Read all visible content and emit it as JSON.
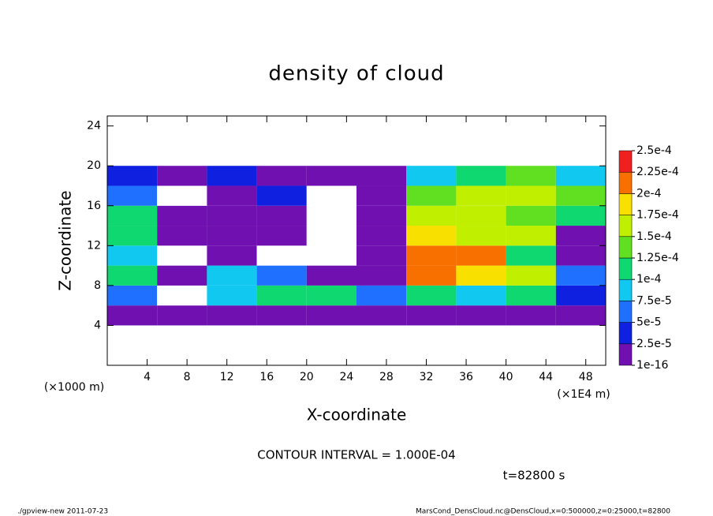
{
  "chart_data": {
    "type": "contourf",
    "title": "density of cloud",
    "xlabel": "X-coordinate",
    "ylabel": "Z-coordinate",
    "xunit": "(×1E4 m)",
    "yunit": "(×1000 m)",
    "annotation": "CONTOUR INTERVAL = 1.000E-04",
    "time_label": "t=82800 s",
    "footer_left": "./gpview-new   2011-07-23",
    "footer_right": "MarsCond_DensCloud.nc@DensCloud,x=0:500000,z=0:25000,t=82800",
    "xlim": [
      0,
      50
    ],
    "ylim": [
      0,
      25
    ],
    "xticks": [
      4,
      8,
      12,
      16,
      20,
      24,
      28,
      32,
      36,
      40,
      44,
      48
    ],
    "yticks": [
      4,
      8,
      12,
      16,
      20,
      24
    ],
    "x_edges": [
      0,
      5,
      10,
      15,
      20,
      25,
      30,
      35,
      40,
      45,
      50
    ],
    "z_edges": [
      4,
      6,
      8,
      10,
      12,
      14,
      16,
      18,
      20
    ],
    "values": [
      [
        1e-05,
        1e-05,
        1e-05,
        1e-05,
        1e-05,
        1e-05,
        1e-05,
        1e-05,
        1e-05,
        1e-05
      ],
      [
        5e-05,
        0,
        8e-05,
        0.0001,
        0.00011,
        5e-05,
        0.00012,
        8e-05,
        0.0001,
        3e-05
      ],
      [
        0.0001,
        1e-05,
        8e-05,
        6e-05,
        1e-05,
        2e-05,
        0.0002,
        0.00018,
        0.00015,
        6e-05
      ],
      [
        8e-05,
        0,
        1e-05,
        0,
        0,
        1e-05,
        0.00022,
        0.0002,
        0.00012,
        1e-05
      ],
      [
        0.0001,
        1e-05,
        1e-05,
        1e-05,
        0,
        1e-05,
        0.00018,
        0.00016,
        0.00016,
        1e-05
      ],
      [
        0.0001,
        1e-05,
        2e-05,
        1e-05,
        0,
        1e-05,
        0.00015,
        0.00015,
        0.00014,
        0.00012
      ],
      [
        6e-05,
        0,
        1e-05,
        3e-05,
        0,
        1e-05,
        0.00013,
        0.00016,
        0.00015,
        0.00013
      ],
      [
        3e-05,
        2e-05,
        3e-05,
        1e-05,
        1e-05,
        2e-05,
        8e-05,
        0.00012,
        0.00014,
        8e-05
      ]
    ],
    "levels": [
      {
        "value": 1e-16,
        "label": "1e-16"
      },
      {
        "value": 2.5e-05,
        "label": "2.5e-5"
      },
      {
        "value": 5e-05,
        "label": "5e-5"
      },
      {
        "value": 7.5e-05,
        "label": "7.5e-5"
      },
      {
        "value": 0.0001,
        "label": "1e-4"
      },
      {
        "value": 0.000125,
        "label": "1.25e-4"
      },
      {
        "value": 0.00015,
        "label": "1.5e-4"
      },
      {
        "value": 0.000175,
        "label": "1.75e-4"
      },
      {
        "value": 0.0002,
        "label": "2e-4"
      },
      {
        "value": 0.000225,
        "label": "2.25e-4"
      },
      {
        "value": 0.00025,
        "label": "2.5e-4"
      }
    ],
    "colors": [
      "#7010b0",
      "#1020e0",
      "#2070ff",
      "#10c8f0",
      "#10d870",
      "#60e020",
      "#c0f000",
      "#f8e000",
      "#f87000",
      "#f02020",
      "#f8a0a0"
    ]
  }
}
